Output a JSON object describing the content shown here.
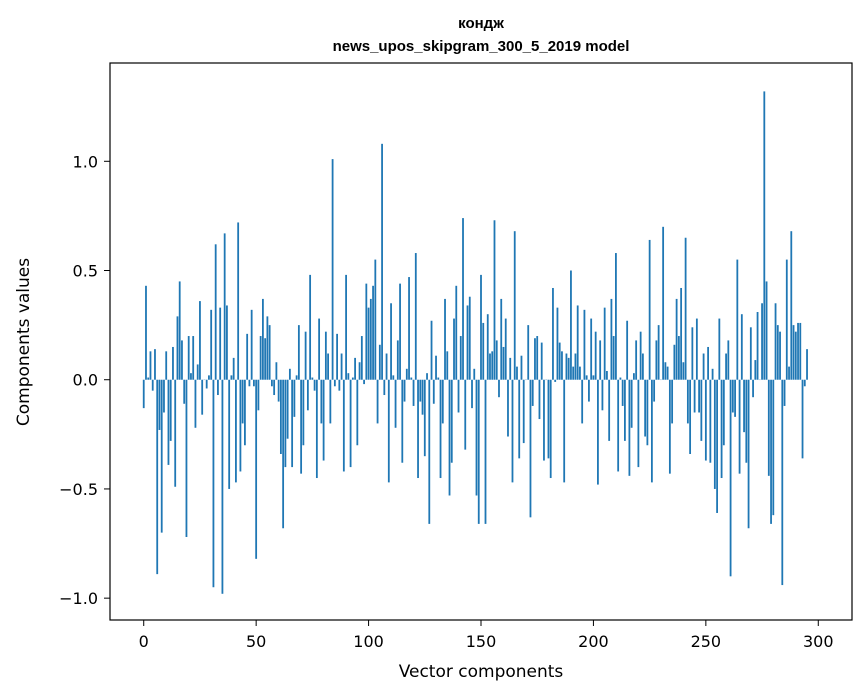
{
  "chart_data": {
    "type": "bar",
    "title_line1": "кондж",
    "title_line2": "news_upos_skipgram_300_5_2019 model",
    "xlabel": "Vector components",
    "ylabel": "Components values",
    "xlim": [
      -15,
      315
    ],
    "ylim": [
      -1.1,
      1.45
    ],
    "xticks": [
      0,
      50,
      100,
      150,
      200,
      250,
      300
    ],
    "xtick_labels": [
      "0",
      "50",
      "100",
      "150",
      "200",
      "250",
      "300"
    ],
    "yticks": [
      -1.0,
      -0.5,
      0.0,
      0.5,
      1.0
    ],
    "ytick_labels": [
      "−1.0",
      "−0.5",
      "0.0",
      "0.5",
      "1.0"
    ],
    "bar_color": "#1f77b4",
    "values": [
      -0.13,
      0.43,
      0.01,
      0.13,
      -0.05,
      0.14,
      -0.89,
      -0.23,
      -0.7,
      -0.15,
      0.13,
      -0.39,
      -0.28,
      0.15,
      -0.49,
      0.29,
      0.45,
      0.18,
      -0.11,
      -0.72,
      0.2,
      0.03,
      0.2,
      -0.22,
      0.07,
      0.36,
      -0.16,
      0.0,
      -0.04,
      0.02,
      0.32,
      -0.95,
      0.62,
      -0.07,
      0.33,
      -0.98,
      0.67,
      0.34,
      -0.5,
      0.02,
      0.1,
      -0.47,
      0.72,
      -0.42,
      -0.2,
      -0.3,
      0.21,
      -0.03,
      0.32,
      -0.03,
      -0.82,
      -0.14,
      0.2,
      0.37,
      0.19,
      0.29,
      0.25,
      -0.03,
      -0.07,
      0.08,
      -0.1,
      -0.34,
      -0.68,
      -0.4,
      -0.27,
      0.05,
      -0.4,
      -0.17,
      0.02,
      0.25,
      -0.43,
      -0.3,
      0.22,
      -0.14,
      0.48,
      0.01,
      -0.05,
      -0.45,
      0.28,
      -0.2,
      -0.37,
      0.22,
      0.12,
      -0.2,
      1.01,
      -0.03,
      0.21,
      -0.05,
      0.12,
      -0.42,
      0.48,
      0.03,
      -0.4,
      0.01,
      0.1,
      -0.3,
      0.08,
      0.2,
      -0.02,
      0.44,
      0.33,
      0.37,
      0.43,
      0.55,
      -0.2,
      0.16,
      1.08,
      -0.07,
      0.12,
      -0.47,
      0.35,
      0.02,
      -0.22,
      0.18,
      0.44,
      -0.38,
      -0.1,
      0.05,
      0.47,
      0.01,
      -0.12,
      0.58,
      -0.45,
      -0.1,
      -0.16,
      -0.35,
      0.03,
      -0.66,
      0.27,
      -0.11,
      0.11,
      0.01,
      -0.45,
      -0.2,
      0.37,
      0.13,
      -0.53,
      -0.38,
      0.28,
      0.43,
      -0.15,
      0.2,
      0.74,
      -0.32,
      0.34,
      0.38,
      -0.13,
      0.05,
      -0.53,
      -0.66,
      0.48,
      0.26,
      -0.66,
      0.3,
      0.12,
      0.13,
      0.73,
      0.18,
      -0.08,
      0.37,
      0.15,
      0.28,
      -0.26,
      0.1,
      -0.47,
      0.68,
      0.06,
      -0.36,
      0.11,
      -0.29,
      0.0,
      0.25,
      -0.63,
      -0.12,
      0.19,
      0.2,
      -0.18,
      0.17,
      -0.37,
      0.0,
      -0.36,
      -0.45,
      0.42,
      -0.01,
      0.33,
      0.17,
      0.13,
      -0.47,
      0.12,
      0.1,
      0.5,
      0.06,
      0.12,
      0.34,
      0.06,
      -0.2,
      0.32,
      0.02,
      -0.1,
      0.28,
      0.02,
      0.22,
      -0.48,
      0.18,
      -0.14,
      0.33,
      0.04,
      -0.28,
      0.37,
      0.2,
      0.58,
      -0.42,
      0.01,
      -0.12,
      -0.28,
      0.27,
      -0.44,
      -0.22,
      0.03,
      0.18,
      -0.4,
      0.22,
      0.12,
      -0.26,
      -0.3,
      0.64,
      -0.47,
      -0.1,
      0.18,
      0.25,
      0.0,
      0.7,
      0.08,
      0.06,
      -0.43,
      -0.2,
      0.16,
      0.37,
      0.2,
      0.42,
      0.08,
      0.65,
      -0.2,
      -0.34,
      0.24,
      -0.15,
      0.28,
      -0.15,
      -0.28,
      0.12,
      -0.37,
      0.15,
      -0.38,
      0.05,
      -0.5,
      -0.61,
      0.28,
      -0.45,
      -0.3,
      0.12,
      0.18,
      -0.9,
      -0.15,
      -0.17,
      0.55,
      -0.43,
      0.3,
      -0.24,
      -0.38,
      -0.68,
      0.24,
      -0.08,
      0.09,
      0.31,
      0.0,
      0.35,
      1.32,
      0.45,
      -0.44,
      -0.66,
      -0.62,
      0.35,
      0.25,
      0.22,
      -0.94,
      -0.12,
      0.55,
      0.06,
      0.68,
      0.25,
      0.22,
      0.26,
      0.26,
      -0.36,
      -0.03,
      0.14
    ]
  }
}
